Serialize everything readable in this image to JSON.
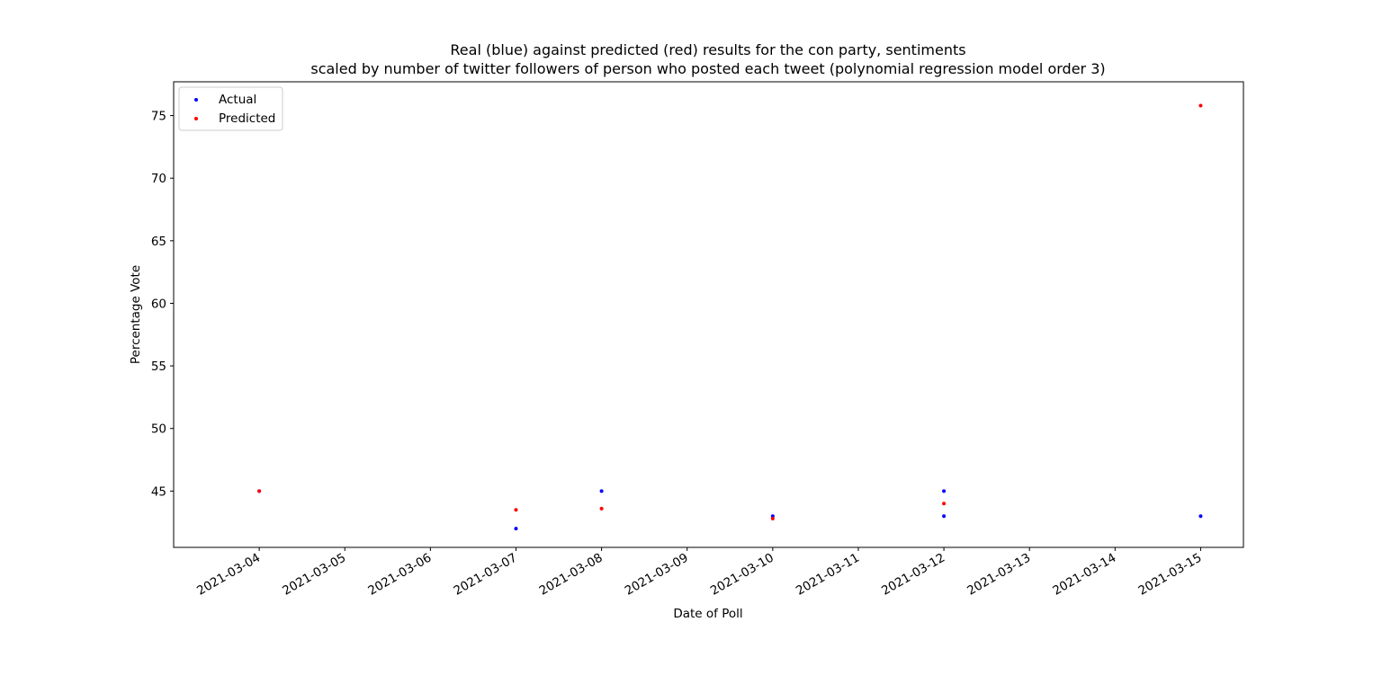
{
  "chart_data": {
    "type": "scatter",
    "title": "Real (blue) against predicted (red) results for the con party, sentiments",
    "subtitle": "scaled by number of twitter followers of person who posted each tweet (polynomial regression model order 3)",
    "xlabel": "Date of Poll",
    "ylabel": "Percentage Vote",
    "x_ticks": [
      "2021-03-04",
      "2021-03-05",
      "2021-03-06",
      "2021-03-07",
      "2021-03-08",
      "2021-03-09",
      "2021-03-10",
      "2021-03-11",
      "2021-03-12",
      "2021-03-13",
      "2021-03-14",
      "2021-03-15"
    ],
    "xlim": [
      "2021-03-03",
      "2021-03-15"
    ],
    "y_ticks": [
      45,
      50,
      55,
      60,
      65,
      70,
      75
    ],
    "ylim": [
      40.5,
      77.7
    ],
    "grid": false,
    "legend_position": "upper left",
    "series": [
      {
        "name": "Actual",
        "color": "#0000ff",
        "points": [
          {
            "x": "2021-03-04",
            "y": 45
          },
          {
            "x": "2021-03-07",
            "y": 42
          },
          {
            "x": "2021-03-08",
            "y": 45
          },
          {
            "x": "2021-03-10",
            "y": 43
          },
          {
            "x": "2021-03-12",
            "y": 45
          },
          {
            "x": "2021-03-12",
            "y": 43
          },
          {
            "x": "2021-03-15",
            "y": 43
          }
        ]
      },
      {
        "name": "Predicted",
        "color": "#ff0000",
        "points": [
          {
            "x": "2021-03-04",
            "y": 45
          },
          {
            "x": "2021-03-07",
            "y": 43.5
          },
          {
            "x": "2021-03-08",
            "y": 43.6
          },
          {
            "x": "2021-03-10",
            "y": 42.8
          },
          {
            "x": "2021-03-12",
            "y": 44
          },
          {
            "x": "2021-03-15",
            "y": 75.8
          }
        ]
      }
    ]
  }
}
